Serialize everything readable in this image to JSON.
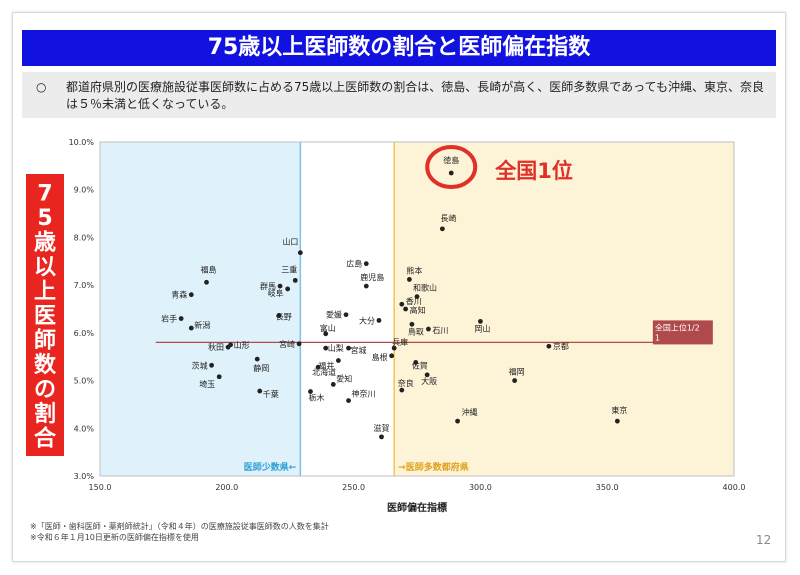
{
  "title": "75歳以上医師数の割合と医師偏在指数",
  "note": {
    "bullet": "○",
    "text": "都道府県別の医療施設従事医師数に占める75歳以上医師数の割合は、徳島、長崎が高く、医師多数県であっても沖縄、東京、奈良は５％未満と低くなっている。"
  },
  "vertical_label": "75歳以上医師数の割合",
  "badge": "全国1位",
  "ref_label": "全国上位1/2",
  "ref_label_tail": "1",
  "region_labels": {
    "low": "医師少数県←",
    "high": "→医師多数都府県"
  },
  "colors": {
    "low_fill": "#dff2fb",
    "high_fill": "#fdf3d7",
    "low_line": "#7fc2e0",
    "high_line": "#f0c25a",
    "ref_line": "#b04a4a",
    "badge": "#e0302a",
    "vertical_bg": "#e8261f",
    "title_bg": "#1212e0"
  },
  "chart_data": {
    "type": "scatter",
    "xlabel": "医師偏在指標",
    "ylabel": "",
    "xlim": [
      150,
      400
    ],
    "ylim": [
      3.0,
      10.0
    ],
    "xticks": [
      "150.0",
      "200.0",
      "250.0",
      "300.0",
      "350.0",
      "400.0"
    ],
    "yticks": [
      "3.0%",
      "4.0%",
      "5.0%",
      "6.0%",
      "7.0%",
      "8.0%",
      "9.0%",
      "10.0%"
    ],
    "thresholds": {
      "low_x": 229.0,
      "high_x": 266.0,
      "ref_y": 5.8
    },
    "points": [
      {
        "name": "徳島",
        "x": 288.5,
        "y": 9.35
      },
      {
        "name": "長崎",
        "x": 285.0,
        "y": 8.18
      },
      {
        "name": "山口",
        "x": 229.0,
        "y": 7.68
      },
      {
        "name": "三重",
        "x": 227.0,
        "y": 7.1
      },
      {
        "name": "福島",
        "x": 192.0,
        "y": 7.06
      },
      {
        "name": "群馬",
        "x": 221.0,
        "y": 6.98
      },
      {
        "name": "青森",
        "x": 186.0,
        "y": 6.8
      },
      {
        "name": "岐阜",
        "x": 224.0,
        "y": 6.92
      },
      {
        "name": "長野",
        "x": 220.5,
        "y": 6.36
      },
      {
        "name": "岩手",
        "x": 182.0,
        "y": 6.3
      },
      {
        "name": "新潟",
        "x": 186.0,
        "y": 6.1
      },
      {
        "name": "広島",
        "x": 255.0,
        "y": 7.45
      },
      {
        "name": "鹿児島",
        "x": 255.0,
        "y": 6.98
      },
      {
        "name": "愛媛",
        "x": 247.0,
        "y": 6.38
      },
      {
        "name": "大分",
        "x": 260.0,
        "y": 6.26
      },
      {
        "name": "富山",
        "x": 239.0,
        "y": 5.98
      },
      {
        "name": "熊本",
        "x": 272.0,
        "y": 7.12
      },
      {
        "name": "和歌山",
        "x": 275.0,
        "y": 6.76
      },
      {
        "name": "香川",
        "x": 269.0,
        "y": 6.6
      },
      {
        "name": "高知",
        "x": 270.5,
        "y": 6.5
      },
      {
        "name": "鳥取",
        "x": 273.0,
        "y": 6.18
      },
      {
        "name": "石川",
        "x": 279.5,
        "y": 6.08
      },
      {
        "name": "岡山",
        "x": 300.0,
        "y": 6.24
      },
      {
        "name": "秋田",
        "x": 200.5,
        "y": 5.7
      },
      {
        "name": "山形",
        "x": 201.5,
        "y": 5.75
      },
      {
        "name": "茨城",
        "x": 194.0,
        "y": 5.32
      },
      {
        "name": "埼玉",
        "x": 197.0,
        "y": 5.08
      },
      {
        "name": "静岡",
        "x": 212.0,
        "y": 5.45
      },
      {
        "name": "千葉",
        "x": 213.0,
        "y": 4.78
      },
      {
        "name": "宮崎",
        "x": 228.5,
        "y": 5.77
      },
      {
        "name": "山梨",
        "x": 239.0,
        "y": 5.68
      },
      {
        "name": "福井",
        "x": 244.0,
        "y": 5.42
      },
      {
        "name": "宮城",
        "x": 248.0,
        "y": 5.68
      },
      {
        "name": "兵庫",
        "x": 266.0,
        "y": 5.68
      },
      {
        "name": "島根",
        "x": 265.0,
        "y": 5.52
      },
      {
        "name": "北海道",
        "x": 236.0,
        "y": 5.28
      },
      {
        "name": "愛知",
        "x": 242.0,
        "y": 4.92
      },
      {
        "name": "栃木",
        "x": 233.0,
        "y": 4.77
      },
      {
        "name": "神奈川",
        "x": 248.0,
        "y": 4.58
      },
      {
        "name": "佐賀",
        "x": 274.5,
        "y": 5.38
      },
      {
        "name": "大阪",
        "x": 279.0,
        "y": 5.12
      },
      {
        "name": "奈良",
        "x": 269.0,
        "y": 4.8
      },
      {
        "name": "福岡",
        "x": 313.5,
        "y": 5.0
      },
      {
        "name": "京都",
        "x": 327.0,
        "y": 5.72
      },
      {
        "name": "東京",
        "x": 354.0,
        "y": 4.15
      },
      {
        "name": "沖縄",
        "x": 291.0,
        "y": 4.15
      },
      {
        "name": "滋賀",
        "x": 261.0,
        "y": 3.82
      }
    ]
  },
  "footnotes": [
    "※「医師・歯科医師・薬剤師統計」（令和４年）の医療施設従事医師数の人数を集計",
    "※令和６年１月10日更新の医師偏在指標を使用"
  ],
  "page_number": "12"
}
